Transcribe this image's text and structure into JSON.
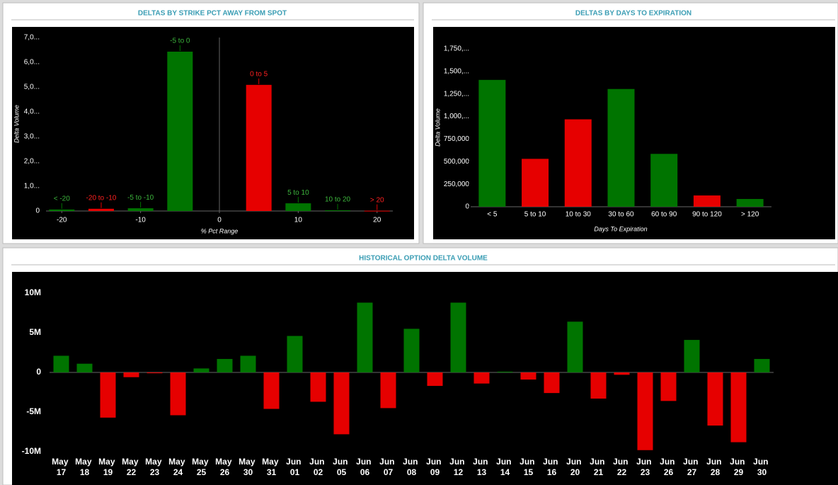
{
  "chart_data": [
    {
      "type": "bar",
      "title": "DELTAS BY STRIKE PCT AWAY FROM SPOT",
      "x_label": "% Pct Range",
      "y_label": "Delta Volume",
      "x": [
        -20,
        -15,
        -10,
        -5,
        5,
        10,
        15,
        20
      ],
      "values": [
        60,
        90,
        110,
        6430,
        5090,
        310,
        30,
        10
      ],
      "point_labels": [
        "< -20",
        "-20 to -10",
        "-5 to -10",
        "-5 to 0",
        "0 to 5",
        "5 to 10",
        "10 to 20",
        "> 20"
      ],
      "colors": [
        "#007400",
        "#e60000",
        "#007400",
        "#007400",
        "#e60000",
        "#007400",
        "#007400",
        "#e60000"
      ],
      "xlim": [
        -22,
        22
      ],
      "xticks": [
        -20,
        -10,
        0,
        10,
        20
      ],
      "ylim": [
        0,
        7000
      ],
      "yticks": [
        0,
        {
          "value": 1000,
          "label": "1,0..."
        },
        {
          "value": 2000,
          "label": "2,0..."
        },
        {
          "value": 3000,
          "label": "3,0..."
        },
        {
          "value": 4000,
          "label": "4,0..."
        },
        {
          "value": 5000,
          "label": "5,0..."
        },
        {
          "value": 6000,
          "label": "6,0..."
        },
        {
          "value": 7000,
          "label": "7,0..."
        }
      ]
    },
    {
      "type": "bar",
      "title": "DELTAS BY DAYS TO EXPIRATION",
      "x_label": "Days To Expiration",
      "y_label": "Delta Volume",
      "categories": [
        "< 5",
        "5 to 10",
        "10 to 30",
        "30 to 60",
        "60 to 90",
        "90 to 120",
        "> 120"
      ],
      "values": [
        1406000,
        531000,
        969000,
        1305000,
        586000,
        125000,
        86000
      ],
      "colors": [
        "#007400",
        "#e60000",
        "#e60000",
        "#007400",
        "#007400",
        "#e60000",
        "#007400"
      ],
      "ylim": [
        0,
        1750000
      ],
      "yticks": [
        0,
        {
          "value": 250000,
          "label": "250,000"
        },
        {
          "value": 500000,
          "label": "500,000"
        },
        {
          "value": 750000,
          "label": "750,000"
        },
        {
          "value": 1000000,
          "label": "1,000,..."
        },
        {
          "value": 1250000,
          "label": "1,250,..."
        },
        {
          "value": 1500000,
          "label": "1,500,..."
        },
        {
          "value": 1750000,
          "label": "1,750,..."
        }
      ]
    },
    {
      "type": "bar",
      "title": "HISTORICAL OPTION DELTA VOLUME",
      "categories": [
        "May 17",
        "May 18",
        "May 19",
        "May 22",
        "May 23",
        "May 24",
        "May 25",
        "May 26",
        "May 30",
        "May 31",
        "Jun 01",
        "Jun 02",
        "Jun 05",
        "Jun 06",
        "Jun 07",
        "Jun 08",
        "Jun 09",
        "Jun 12",
        "Jun 13",
        "Jun 14",
        "Jun 15",
        "Jun 16",
        "Jun 20",
        "Jun 21",
        "Jun 22",
        "Jun 23",
        "Jun 26",
        "Jun 27",
        "Jun 28",
        "Jun 29",
        "Jun 30"
      ],
      "values": [
        2100000,
        1100000,
        -5700000,
        -600000,
        -100000,
        -5400000,
        500000,
        1700000,
        2100000,
        -4600000,
        4600000,
        -3700000,
        -7800000,
        8800000,
        -4500000,
        5500000,
        -1700000,
        8800000,
        -1400000,
        100000,
        -900000,
        -2600000,
        6400000,
        -3300000,
        -300000,
        -9800000,
        -3600000,
        4100000,
        -6700000,
        -8800000,
        1700000
      ],
      "colors": [
        "#007400",
        "#007400",
        "#e60000",
        "#e60000",
        "#e60000",
        "#e60000",
        "#007400",
        "#007400",
        "#007400",
        "#e60000",
        "#007400",
        "#e60000",
        "#e60000",
        "#007400",
        "#e60000",
        "#007400",
        "#e60000",
        "#007400",
        "#e60000",
        "#007400",
        "#e60000",
        "#e60000",
        "#007400",
        "#e60000",
        "#e60000",
        "#e60000",
        "#e60000",
        "#007400",
        "#e60000",
        "#e60000",
        "#007400"
      ],
      "ylim": [
        -10000000,
        10000000
      ],
      "yticks": [
        {
          "value": 10000000,
          "label": "10M"
        },
        {
          "value": 5000000,
          "label": "5M"
        },
        0,
        {
          "value": -5000000,
          "label": "-5M"
        },
        {
          "value": -10000000,
          "label": "-10M"
        }
      ]
    }
  ]
}
